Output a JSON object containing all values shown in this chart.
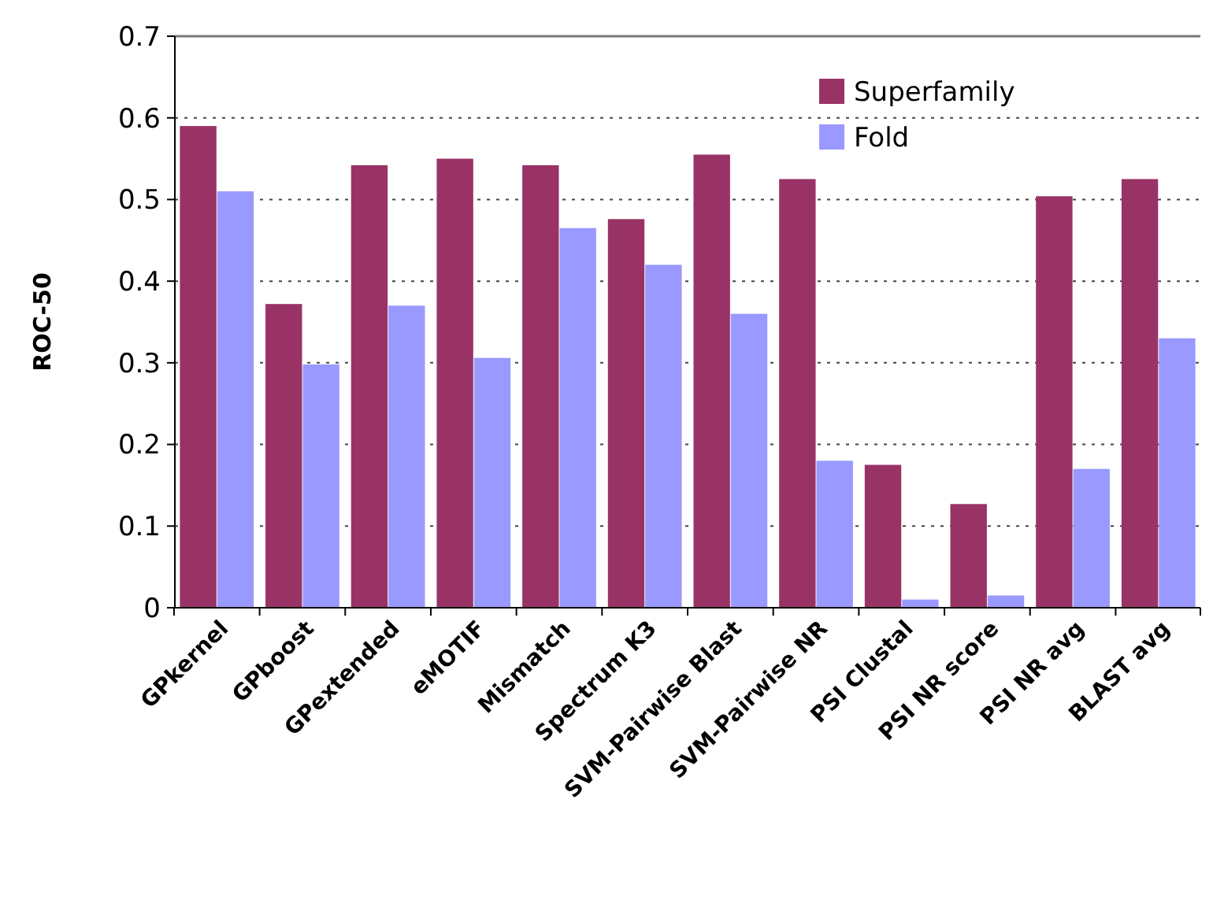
{
  "chart_data": {
    "type": "bar",
    "ylabel": "ROC-50",
    "categories": [
      "GPkernel",
      "GPboost",
      "GPextended",
      "eMOTIF",
      "Mismatch",
      "Spectrum K3",
      "SVM-Pairwise Blast",
      "SVM-Pairwise NR",
      "PSI  Clustal",
      "PSI NR score",
      "PSI NR avg",
      "BLAST avg"
    ],
    "series": [
      {
        "name": "Superfamily",
        "color": "#993366",
        "values": [
          0.59,
          0.372,
          0.542,
          0.55,
          0.542,
          0.476,
          0.555,
          0.525,
          0.175,
          0.127,
          0.504,
          0.525
        ]
      },
      {
        "name": "Fold",
        "color": "#9999ff",
        "values": [
          0.51,
          0.298,
          0.37,
          0.306,
          0.465,
          0.42,
          0.36,
          0.18,
          0.01,
          0.015,
          0.17,
          0.33
        ]
      }
    ],
    "ylim": [
      0,
      0.7
    ],
    "yticks": [
      0,
      0.1,
      0.2,
      0.3,
      0.4,
      0.5,
      0.6,
      0.7
    ],
    "grid": "y",
    "legend": "top right"
  }
}
